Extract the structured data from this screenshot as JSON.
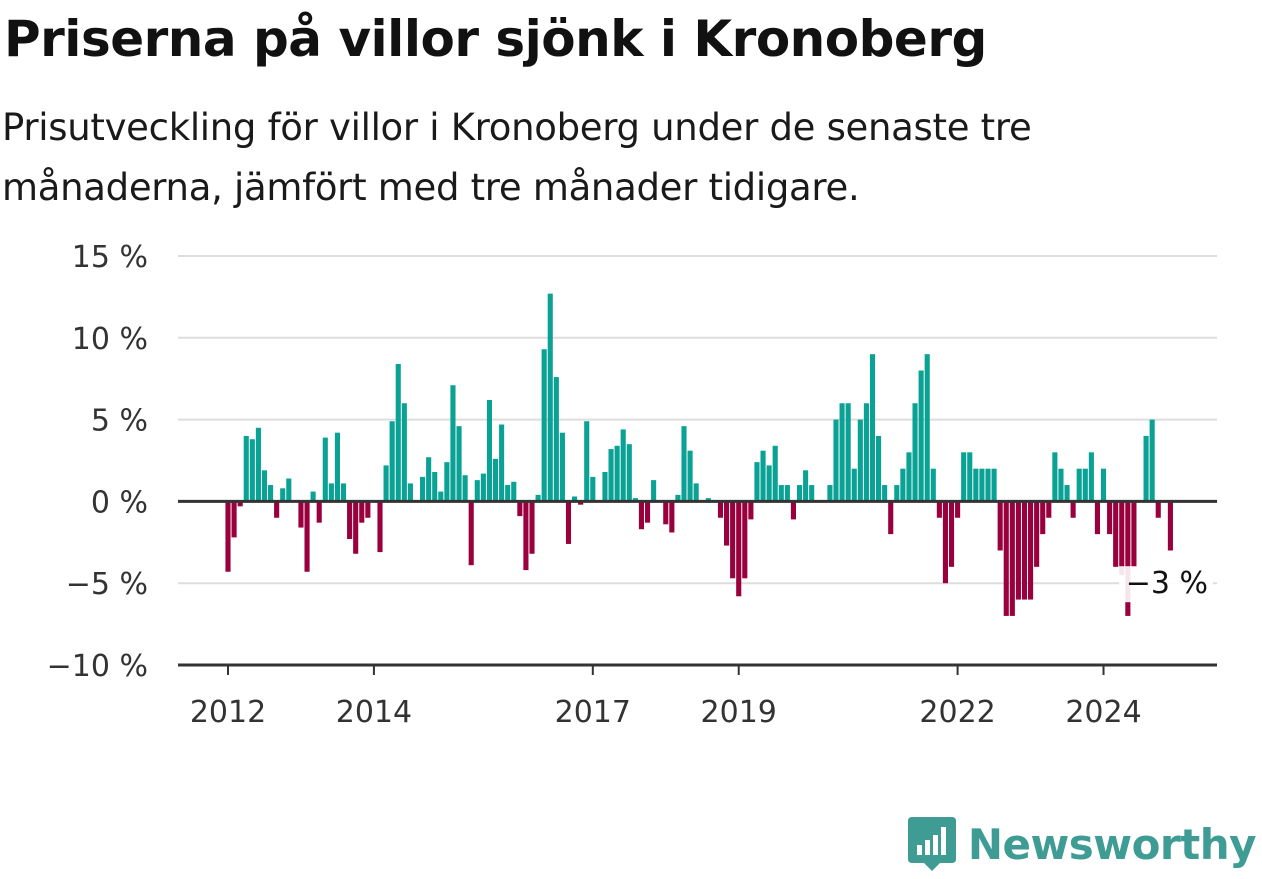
{
  "title": "Priserna på villor sjönk i Kronoberg",
  "subtitle": "Prisutveckling för villor i Kronoberg under de senaste tre månaderna, jämfört med tre månader tidigare.",
  "brand": {
    "name": "Newsworthy",
    "icon": "newsworthy-logo-icon",
    "color": "#3f9c95"
  },
  "colors": {
    "positive": "#0aa295",
    "negative": "#99003d",
    "grid": "#dddddd",
    "axis": "#333333"
  },
  "chart_data": {
    "type": "bar",
    "title": "Priserna på villor sjönk i Kronoberg",
    "ylim": [
      -10,
      15
    ],
    "yticks": [
      15,
      10,
      5,
      0,
      -5,
      -10
    ],
    "ytick_labels": [
      "15 %",
      "10 %",
      "5 %",
      "0 %",
      "−5 %",
      "−10 %"
    ],
    "xticks": [
      "2012",
      "2014",
      "2017",
      "2019",
      "2022",
      "2024"
    ],
    "grid": true,
    "end_label": "−3 %",
    "start_month": "2012-01",
    "end_month": "2024-12",
    "values": [
      -4.3,
      -2.2,
      -0.3,
      4,
      3.8,
      4.5,
      1.9,
      1,
      -1,
      0.8,
      1.4,
      0,
      -1.6,
      -4.3,
      0.6,
      -1.3,
      3.9,
      1.1,
      4.2,
      1.1,
      -2.3,
      -3.2,
      -1.3,
      -1,
      0,
      -3.1,
      2.2,
      4.9,
      8.4,
      6,
      1.1,
      0,
      1.5,
      2.7,
      1.8,
      0.6,
      2.4,
      7.1,
      4.6,
      1.6,
      -3.9,
      1.3,
      1.7,
      6.2,
      2.6,
      4.7,
      1,
      1.2,
      -0.9,
      -4.2,
      -3.2,
      0.4,
      9.3,
      12.7,
      7.6,
      4.2,
      -2.6,
      0.3,
      -0.2,
      4.9,
      1.5,
      0,
      1.8,
      3.2,
      3.4,
      4.4,
      3.5,
      0.2,
      -1.7,
      -1.3,
      1.3,
      0,
      -1.4,
      -1.9,
      0.4,
      4.6,
      3.1,
      1.1,
      0,
      0.2,
      0,
      -1,
      -2.7,
      -4.7,
      -5.8,
      -4.7,
      -1.1,
      2.4,
      3.1,
      2.2,
      3.4,
      1,
      1,
      -1.1,
      1,
      1.9,
      1,
      0,
      0,
      1,
      5,
      6,
      6,
      2,
      5,
      6,
      9,
      4,
      1,
      -2,
      1,
      2,
      3,
      6,
      8,
      9,
      2,
      -1,
      -5,
      -4,
      -1,
      3,
      3,
      2,
      2,
      2,
      2,
      -3,
      -7,
      -7,
      -6,
      -6,
      -6,
      -4,
      -2,
      -1,
      3,
      2,
      1,
      -1,
      2,
      2,
      3,
      -2,
      2,
      -2,
      -4,
      -4.5,
      -7,
      -4,
      0,
      4,
      5,
      -1,
      0,
      -3
    ]
  }
}
